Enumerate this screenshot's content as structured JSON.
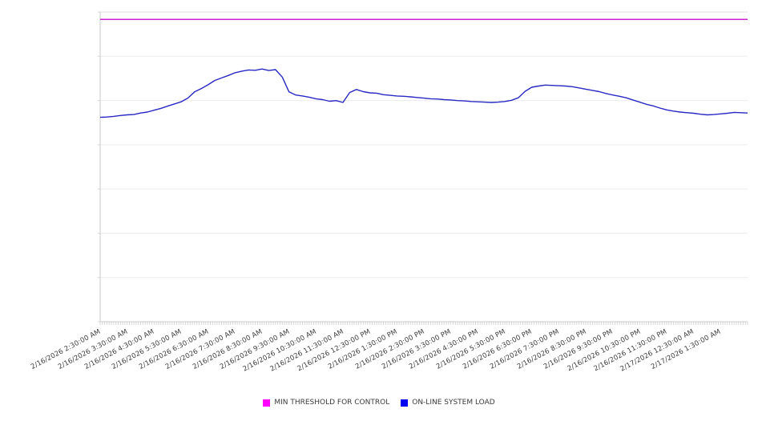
{
  "page": {
    "background": "#ffffff"
  },
  "colors": {
    "grid": "#ececec",
    "grid_top": "#e2e2e2",
    "axis": "#c9c9c9",
    "tick": "#d6d6d6",
    "label_text": "#3d3d3d"
  },
  "chart_data": {
    "type": "line",
    "title": "",
    "xlabel": "",
    "ylabel": "",
    "x_axis": {
      "labels": [
        "2/16/2026 2:30:00 AM",
        "2/16/2026 3:30:00 AM",
        "2/16/2026 4:30:00 AM",
        "2/16/2026 5:30:00 AM",
        "2/16/2026 6:30:00 AM",
        "2/16/2026 7:30:00 AM",
        "2/16/2026 8:30:00 AM",
        "2/16/2026 9:30:00 AM",
        "2/16/2026 10:30:00 AM",
        "2/16/2026 11:30:00 AM",
        "2/16/2026 12:30:00 PM",
        "2/16/2026 1:30:00 PM",
        "2/16/2026 2:30:00 PM",
        "2/16/2026 3:30:00 PM",
        "2/16/2026 4:30:00 PM",
        "2/16/2026 5:30:00 PM",
        "2/16/2026 6:30:00 PM",
        "2/16/2026 7:30:00 PM",
        "2/16/2026 8:30:00 PM",
        "2/16/2026 9:30:00 PM",
        "2/16/2026 10:30:00 PM",
        "2/16/2026 11:30:00 PM",
        "2/17/2026 12:30:00 AM",
        "2/17/2026 1:30:00 AM"
      ],
      "label_rotation_deg": -28,
      "label_interval": "1 hour",
      "minor_ticks": 288,
      "minor_tick_interval": "5 minutes",
      "range_hours": 24
    },
    "y_axis": {
      "tick_labels": "none",
      "units": "percent of plot height (axis unlabeled in source)",
      "ylim": [
        0,
        100
      ],
      "gridline_rows": 7,
      "grid": "horizontal only"
    },
    "legend": {
      "position": "bottom-center",
      "entries": [
        "MIN THRESHOLD FOR CONTROL",
        "ON-LINE SYSTEM LOAD"
      ]
    },
    "series": [
      {
        "name": "MIN THRESHOLD FOR CONTROL",
        "type": "constant-line",
        "value": 97.6,
        "line_color": "#cc22cc",
        "swatch_color": "#ff00ff"
      },
      {
        "name": "ON-LINE SYSTEM LOAD",
        "type": "line",
        "x_start_hours": 0,
        "x_step_hours": 0.25,
        "line_color": "#2828c4",
        "swatch_color": "#0000f0",
        "values": [
          66.0,
          66.1,
          66.3,
          66.6,
          66.8,
          66.9,
          67.4,
          67.7,
          68.3,
          68.9,
          69.6,
          70.3,
          71.0,
          72.2,
          74.2,
          75.3,
          76.5,
          77.9,
          78.7,
          79.5,
          80.4,
          80.9,
          81.3,
          81.2,
          81.6,
          81.1,
          81.4,
          79.0,
          74.2,
          73.2,
          72.9,
          72.5,
          72.0,
          71.7,
          71.2,
          71.4,
          70.8,
          74.0,
          75.0,
          74.3,
          73.9,
          73.8,
          73.3,
          73.1,
          72.9,
          72.8,
          72.6,
          72.4,
          72.2,
          72.0,
          71.9,
          71.7,
          71.6,
          71.4,
          71.3,
          71.1,
          71.0,
          70.9,
          70.8,
          70.9,
          71.1,
          71.5,
          72.3,
          74.4,
          75.7,
          76.1,
          76.4,
          76.3,
          76.2,
          76.1,
          75.9,
          75.5,
          75.1,
          74.7,
          74.3,
          73.7,
          73.2,
          72.8,
          72.3,
          71.6,
          70.9,
          70.2,
          69.7,
          69.0,
          68.4,
          68.0,
          67.7,
          67.5,
          67.3,
          67.0,
          66.8,
          66.9,
          67.1,
          67.3,
          67.6,
          67.5,
          67.4
        ]
      }
    ]
  }
}
